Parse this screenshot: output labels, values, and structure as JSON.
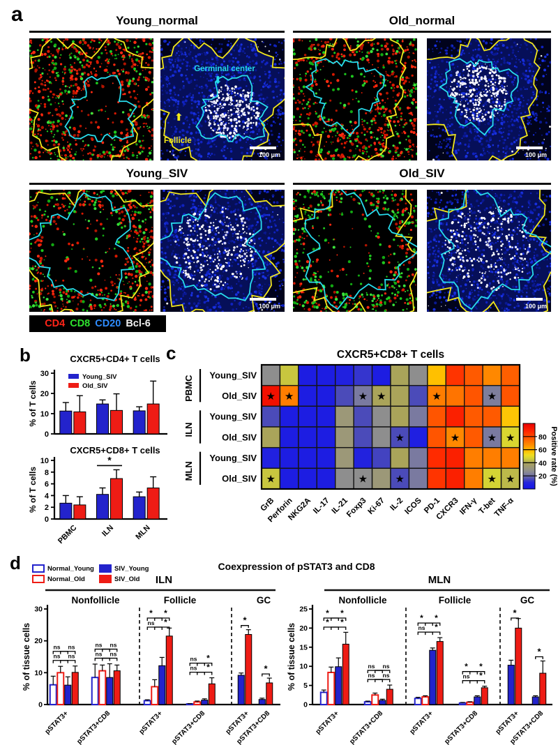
{
  "panel_a": {
    "label": "a",
    "groups": [
      {
        "title": "Young_normal"
      },
      {
        "title": "Old_normal"
      },
      {
        "title": "Young_SIV"
      },
      {
        "title": "Old_SIV"
      }
    ],
    "annotations": {
      "germinal_center": "Germinal center",
      "follicle": "Follicle"
    },
    "scale_bar": "100 μm",
    "markers": [
      {
        "label": "CD4",
        "color": "#ff2418"
      },
      {
        "label": "CD8",
        "color": "#2ee22e"
      },
      {
        "label": "CD20",
        "color": "#2e8cff"
      },
      {
        "label": "Bcl-6",
        "color": "#f2f2f2"
      }
    ]
  },
  "panel_b": {
    "label": "b"
  },
  "panel_c": {
    "label": "c"
  },
  "panel_d": {
    "label": "d",
    "title": "Coexpression of pSTAT3 and CD8",
    "legend": [
      {
        "label": "Normal_Young",
        "fill": "#ffffff",
        "stroke": "#2323cc"
      },
      {
        "label": "Normal_Old",
        "fill": "#ffffff",
        "stroke": "#ee1c15"
      },
      {
        "label": "SIV_Young",
        "fill": "#2323cc",
        "stroke": "#2323cc"
      },
      {
        "label": "SIV_Old",
        "fill": "#ee1c15",
        "stroke": "#ee1c15"
      }
    ],
    "series_styles": {
      "Normal_Young": {
        "fill": "#ffffff",
        "stroke": "#2323cc",
        "sw": 2
      },
      "Normal_Old": {
        "fill": "#ffffff",
        "stroke": "#ee1c15",
        "sw": 2
      },
      "SIV_Young": {
        "fill": "#2323cc",
        "stroke": "#000000",
        "sw": 1
      },
      "SIV_Old": {
        "fill": "#ee1c15",
        "stroke": "#000000",
        "sw": 1
      }
    }
  },
  "chart_data": [
    {
      "id": "b-top",
      "type": "bar",
      "title": "CXCR5+CD4+ T cells",
      "ylabel": "% of T cells",
      "ylim": [
        0,
        30
      ],
      "yticks": [
        0,
        10,
        20,
        30
      ],
      "categories": [
        "PBMC",
        "ILN",
        "MLN"
      ],
      "series": [
        {
          "name": "Young_SIV",
          "color": "#2323cc",
          "values": [
            11.3,
            14.8,
            11.4
          ],
          "errors": [
            4.2,
            2.0,
            2.0
          ]
        },
        {
          "name": "Old_SIV",
          "color": "#ee1c15",
          "values": [
            10.9,
            11.6,
            14.8
          ],
          "errors": [
            8.0,
            8.2,
            11.3
          ]
        }
      ],
      "sig": []
    },
    {
      "id": "b-bottom",
      "type": "bar",
      "title": "CXCR5+CD8+ T cells",
      "ylabel": "% of T cells",
      "ylim": [
        0,
        10
      ],
      "yticks": [
        0,
        2,
        4,
        6,
        8,
        10
      ],
      "categories": [
        "PBMC",
        "ILN",
        "MLN"
      ],
      "series": [
        {
          "name": "Young_SIV",
          "color": "#2323cc",
          "values": [
            2.7,
            4.2,
            3.8
          ],
          "errors": [
            1.3,
            1.1,
            0.8
          ]
        },
        {
          "name": "Old_SIV",
          "color": "#ee1c15",
          "values": [
            2.4,
            6.9,
            5.3
          ],
          "errors": [
            1.4,
            1.5,
            1.9
          ]
        }
      ],
      "sig": [
        {
          "pair_index": 1,
          "label": "*"
        }
      ]
    },
    {
      "id": "c-heatmap",
      "type": "heatmap",
      "title": "CXCR5+CD8+ T cells",
      "row_groups": [
        {
          "name": "PBMC",
          "rows": [
            "Young_SIV",
            "Old_SIV"
          ]
        },
        {
          "name": "ILN",
          "rows": [
            "Young_SIV",
            "Old_SIV"
          ]
        },
        {
          "name": "MLN",
          "rows": [
            "Young_SIV",
            "Old_SIV"
          ]
        }
      ],
      "columns": [
        "GrB",
        "Perforin",
        "NKG2A",
        "IL-17",
        "IL-21",
        "Foxp3",
        "Ki-67",
        "IL-2",
        "ICOS",
        "PD-1",
        "CXCR3",
        "IFN-γ",
        "T-bet",
        "TNF-α"
      ],
      "values": [
        [
          27,
          45,
          5,
          5,
          7,
          12,
          5,
          40,
          27,
          58,
          85,
          77,
          68,
          76
        ],
        [
          95,
          70,
          5,
          5,
          15,
          22,
          40,
          40,
          15,
          70,
          72,
          78,
          23,
          78
        ],
        [
          15,
          5,
          5,
          5,
          33,
          15,
          27,
          40,
          22,
          78,
          90,
          77,
          77,
          57
        ],
        [
          40,
          5,
          5,
          5,
          33,
          15,
          27,
          15,
          6,
          78,
          68,
          77,
          22,
          48
        ],
        [
          7,
          5,
          5,
          5,
          33,
          8,
          14,
          40,
          22,
          87,
          90,
          70,
          70,
          70
        ],
        [
          45,
          5,
          5,
          5,
          27,
          27,
          33,
          15,
          22,
          85,
          90,
          70,
          47,
          43
        ]
      ],
      "stars": [
        [],
        [
          0,
          1,
          5,
          6,
          9,
          12
        ],
        [],
        [
          7,
          10,
          12,
          13
        ],
        [],
        [
          0,
          5,
          7,
          12,
          13
        ]
      ],
      "colorbar": {
        "label": "Positive rate (%)",
        "ticks": [
          20,
          40,
          60,
          80
        ],
        "range": [
          0,
          100
        ]
      }
    },
    {
      "id": "d-iln",
      "type": "grouped-bar",
      "title": "ILN",
      "ylabel": "% of tissue cells",
      "ylim": [
        0,
        30
      ],
      "yticks": [
        0,
        10,
        20,
        30
      ],
      "sections": [
        {
          "name": "Nonfollicle",
          "clusters": [
            {
              "label": "pSTAT3+",
              "bars": [
                {
                  "s": "Normal_Young",
                  "v": 6.2,
                  "e": 2.7
                },
                {
                  "s": "Normal_Old",
                  "v": 10.0,
                  "e": 2.0
                },
                {
                  "s": "SIV_Young",
                  "v": 6.1,
                  "e": 2.6
                },
                {
                  "s": "SIV_Old",
                  "v": 10.1,
                  "e": 2.0
                }
              ],
              "sig": {
                "low": [
                  "ns",
                  "ns"
                ],
                "high": [
                  "ns",
                  "ns"
                ]
              }
            },
            {
              "label": "pSTAT3+CD8",
              "bars": [
                {
                  "s": "Normal_Young",
                  "v": 8.5,
                  "e": 4.2
                },
                {
                  "s": "Normal_Old",
                  "v": 10.6,
                  "e": 1.8
                },
                {
                  "s": "SIV_Young",
                  "v": 8.5,
                  "e": 4.3
                },
                {
                  "s": "SIV_Old",
                  "v": 10.6,
                  "e": 1.8
                }
              ],
              "sig": {
                "low": [
                  "ns",
                  "ns"
                ],
                "high": [
                  "ns",
                  "ns"
                ]
              }
            }
          ]
        },
        {
          "name": "Follicle",
          "clusters": [
            {
              "label": "pSTAT3+",
              "bars": [
                {
                  "s": "Normal_Young",
                  "v": 1.2,
                  "e": 0.3
                },
                {
                  "s": "Normal_Old",
                  "v": 5.6,
                  "e": 2.2
                },
                {
                  "s": "SIV_Young",
                  "v": 12.2,
                  "e": 2.6
                },
                {
                  "s": "SIV_Old",
                  "v": 21.5,
                  "e": 2.5
                }
              ],
              "sig": {
                "low": [
                  "ns",
                  "*"
                ],
                "high": [
                  "*",
                  "*"
                ]
              }
            },
            {
              "label": "pSTAT3+CD8",
              "bars": [
                {
                  "s": "Normal_Young",
                  "v": 0.2,
                  "e": 0.1
                },
                {
                  "s": "Normal_Old",
                  "v": 0.8,
                  "e": 0.3
                },
                {
                  "s": "SIV_Young",
                  "v": 1.4,
                  "e": 0.4
                },
                {
                  "s": "SIV_Old",
                  "v": 6.5,
                  "e": 1.9
                }
              ],
              "sig": {
                "low": [
                  "ns",
                  "*"
                ],
                "high": [
                  "ns",
                  "*"
                ]
              }
            }
          ]
        },
        {
          "name": "GC",
          "clusters": [
            {
              "label": "pSTAT3+",
              "bars": [
                {
                  "s": "SIV_Young",
                  "v": 9.2,
                  "e": 0.7
                },
                {
                  "s": "SIV_Old",
                  "v": 22.0,
                  "e": 1.5
                }
              ],
              "sig": {
                "single": "*"
              }
            },
            {
              "label": "pSTAT3+CD8",
              "bars": [
                {
                  "s": "SIV_Young",
                  "v": 1.6,
                  "e": 0.4
                },
                {
                  "s": "SIV_Old",
                  "v": 6.8,
                  "e": 1.5
                }
              ],
              "sig": {
                "single": "*"
              }
            }
          ]
        }
      ]
    },
    {
      "id": "d-mln",
      "type": "grouped-bar",
      "title": "MLN",
      "ylabel": "% of tissue cells",
      "ylim": [
        0,
        25
      ],
      "yticks": [
        0,
        5,
        10,
        15,
        20,
        25
      ],
      "sections": [
        {
          "name": "Nonfollicle",
          "clusters": [
            {
              "label": "pSTAT3+",
              "bars": [
                {
                  "s": "Normal_Young",
                  "v": 3.2,
                  "e": 0.6
                },
                {
                  "s": "Normal_Old",
                  "v": 8.4,
                  "e": 1.4
                },
                {
                  "s": "SIV_Young",
                  "v": 9.9,
                  "e": 2.3
                },
                {
                  "s": "SIV_Old",
                  "v": 15.8,
                  "e": 3.1
                }
              ],
              "sig": {
                "low": [
                  "*",
                  "*"
                ],
                "high": [
                  "*",
                  "*"
                ]
              }
            },
            {
              "label": "pSTAT3+CD8",
              "bars": [
                {
                  "s": "Normal_Young",
                  "v": 0.7,
                  "e": 0.2
                },
                {
                  "s": "Normal_Old",
                  "v": 2.5,
                  "e": 0.5
                },
                {
                  "s": "SIV_Young",
                  "v": 1.1,
                  "e": 0.3
                },
                {
                  "s": "SIV_Old",
                  "v": 4.0,
                  "e": 1.1
                }
              ],
              "sig": {
                "low": [
                  "ns",
                  "ns"
                ],
                "high": [
                  "ns",
                  "ns"
                ]
              }
            }
          ]
        },
        {
          "name": "Follicle",
          "clusters": [
            {
              "label": "pSTAT3+",
              "bars": [
                {
                  "s": "Normal_Young",
                  "v": 1.6,
                  "e": 0.3
                },
                {
                  "s": "Normal_Old",
                  "v": 2.0,
                  "e": 0.3
                },
                {
                  "s": "SIV_Young",
                  "v": 14.2,
                  "e": 0.6
                },
                {
                  "s": "SIV_Old",
                  "v": 16.5,
                  "e": 1.0
                }
              ],
              "sig": {
                "low": [
                  "ns",
                  "*"
                ],
                "high": [
                  "*",
                  "*"
                ]
              }
            },
            {
              "label": "pSTAT3+CD8",
              "bars": [
                {
                  "s": "Normal_Young",
                  "v": 0.4,
                  "e": 0.15
                },
                {
                  "s": "Normal_Old",
                  "v": 0.6,
                  "e": 0.15
                },
                {
                  "s": "SIV_Young",
                  "v": 2.0,
                  "e": 0.3
                },
                {
                  "s": "SIV_Old",
                  "v": 4.4,
                  "e": 0.4
                }
              ],
              "sig": {
                "low": [
                  "ns",
                  "*"
                ],
                "high": [
                  "*",
                  "*"
                ]
              }
            }
          ]
        },
        {
          "name": "GC",
          "clusters": [
            {
              "label": "pSTAT3+",
              "bars": [
                {
                  "s": "SIV_Young",
                  "v": 10.3,
                  "e": 1.3
                },
                {
                  "s": "SIV_Old",
                  "v": 20.0,
                  "e": 2.5
                }
              ],
              "sig": {
                "single": "*"
              }
            },
            {
              "label": "pSTAT3+CD8",
              "bars": [
                {
                  "s": "SIV_Young",
                  "v": 2.0,
                  "e": 0.3
                },
                {
                  "s": "SIV_Old",
                  "v": 8.2,
                  "e": 3.2
                }
              ],
              "sig": {
                "single": "*"
              }
            }
          ]
        }
      ]
    }
  ]
}
